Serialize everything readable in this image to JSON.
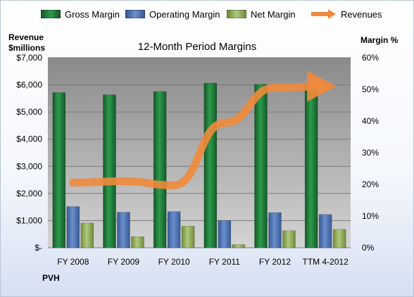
{
  "legend": {
    "gross": "Gross Margin",
    "operating": "Operating Margin",
    "net": "Net Margin",
    "revenues": "Revenues"
  },
  "left_axis_title": "Revenue\n$millions",
  "right_axis_title": "Margin %",
  "footer": "PVH",
  "colors": {
    "gross": "#1f7a3a",
    "operating": "#4f73b0",
    "net": "#92b05a",
    "revenues": "#f08a3c",
    "plot_bg_top": "#8a8a8a",
    "plot_bg_bottom": "#d4d4d4"
  },
  "chart_data": {
    "type": "bar",
    "title": "12-Month Period Margins",
    "categories": [
      "FY 2008",
      "FY 2009",
      "FY 2010",
      "FY 2011",
      "FY 2012",
      "TTM 4-2012"
    ],
    "left_axis": {
      "label": "Revenue $millions",
      "ylim": [
        0,
        7000
      ],
      "ticks": [
        "$-",
        "$1,000",
        "$2,000",
        "$3,000",
        "$4,000",
        "$5,000",
        "$6,000",
        "$7,000"
      ]
    },
    "right_axis": {
      "label": "Margin %",
      "ylim": [
        0,
        60
      ],
      "ticks": [
        "0%",
        "10%",
        "20%",
        "30%",
        "40%",
        "50%",
        "60%"
      ]
    },
    "series": [
      {
        "name": "Gross Margin",
        "type": "bar",
        "axis": "right",
        "values": [
          49,
          48.3,
          49.3,
          52,
          51.6,
          51.8
        ]
      },
      {
        "name": "Operating Margin",
        "type": "bar",
        "axis": "right",
        "values": [
          13,
          11.2,
          11.4,
          8.6,
          11.1,
          10.5
        ]
      },
      {
        "name": "Net Margin",
        "type": "bar",
        "axis": "right",
        "values": [
          7.8,
          3.5,
          6.8,
          1,
          5.4,
          5.8
        ]
      },
      {
        "name": "Revenues",
        "type": "line",
        "axis": "left",
        "values": [
          2400,
          2450,
          2300,
          4600,
          5900,
          5950
        ]
      }
    ],
    "grid": true,
    "legend_position": "top"
  }
}
